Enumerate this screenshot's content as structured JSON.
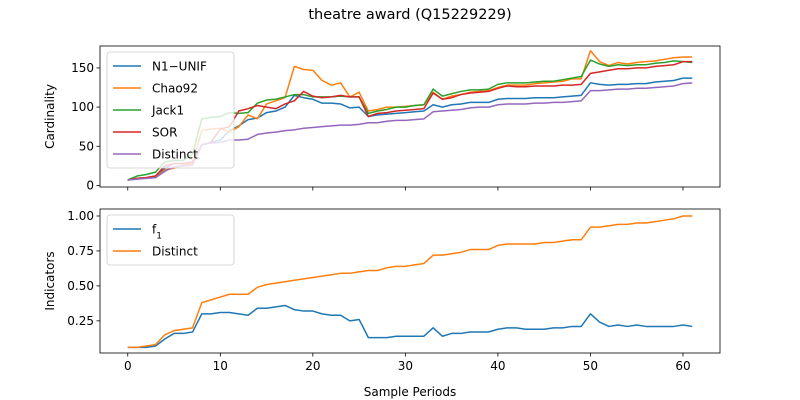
{
  "chart_data": {
    "title": "theatre award (Q15229229)",
    "colors": {
      "blue": "#1f77b4",
      "orange": "#ff7f0e",
      "green": "#2ca02c",
      "red": "#d62728",
      "purple": "#9467bd"
    },
    "x_label": "Sample Periods",
    "x_ticks": [
      "0",
      "10",
      "20",
      "30",
      "40",
      "50",
      "60"
    ],
    "x_range": [
      -3,
      64
    ],
    "panels": [
      {
        "type": "line",
        "ylabel": "Cardinality",
        "ylim": [
          -2,
          178
        ],
        "y_ticks": [
          "0",
          "50",
          "100",
          "150"
        ],
        "legend_loc": "upper-left",
        "series": [
          {
            "name": "N1−UNIF",
            "color_key": "blue",
            "values": [
              7,
              9,
              10,
              12,
              22,
              28,
              28,
              30,
              52,
              55,
              58,
              70,
              76,
              84,
              86,
              93,
              95,
              100,
              115,
              112,
              110,
              105,
              105,
              104,
              99,
              100,
              88,
              90,
              91,
              92,
              93,
              94,
              95,
              103,
              100,
              103,
              104,
              106,
              106,
              106,
              110,
              111,
              111,
              111,
              112,
              112,
              112,
              113,
              114,
              115,
              131,
              129,
              128,
              129,
              129,
              130,
              130,
              132,
              133,
              134,
              137,
              137
            ]
          },
          {
            "name": "Chao92",
            "color_key": "orange",
            "values": [
              7,
              9,
              10,
              10,
              20,
              22,
              26,
              28,
              70,
              72,
              73,
              68,
              75,
              90,
              85,
              104,
              108,
              112,
              152,
              148,
              147,
              134,
              128,
              131,
              113,
              119,
              95,
              97,
              100,
              100,
              101,
              102,
              103,
              119,
              110,
              114,
              116,
              119,
              120,
              121,
              125,
              128,
              128,
              128,
              130,
              131,
              132,
              133,
              136,
              136,
              172,
              158,
              153,
              157,
              155,
              157,
              158,
              159,
              161,
              163,
              164,
              164
            ]
          },
          {
            "name": "Jack1",
            "color_key": "green",
            "values": [
              7,
              12,
              14,
              17,
              30,
              32,
              32,
              40,
              85,
              87,
              88,
              93,
              92,
              93,
              105,
              109,
              110,
              113,
              116,
              116,
              113,
              113,
              113,
              114,
              113,
              113,
              92,
              95,
              97,
              100,
              100,
              102,
              103,
              123,
              114,
              117,
              120,
              122,
              122,
              123,
              129,
              131,
              131,
              131,
              132,
              133,
              133,
              135,
              137,
              139,
              160,
              155,
              152,
              154,
              153,
              154,
              154,
              156,
              157,
              159,
              158,
              157
            ]
          },
          {
            "name": "SOR",
            "color_key": "red",
            "values": [
              7,
              9,
              10,
              12,
              25,
              28,
              28,
              30,
              52,
              55,
              72,
              75,
              95,
              98,
              102,
              100,
              98,
              104,
              108,
              120,
              114,
              112,
              113,
              115,
              113,
              113,
              88,
              92,
              93,
              95,
              96,
              97,
              98,
              118,
              110,
              112,
              116,
              118,
              119,
              120,
              124,
              127,
              126,
              126,
              127,
              127,
              127,
              128,
              128,
              129,
              143,
              145,
              147,
              149,
              149,
              150,
              150,
              152,
              153,
              154,
              158,
              158
            ]
          },
          {
            "name": "Distinct",
            "color_key": "purple",
            "values": [
              7,
              8,
              9,
              10,
              18,
              24,
              25,
              26,
              52,
              54,
              55,
              58,
              58,
              59,
              65,
              67,
              68,
              70,
              71,
              73,
              74,
              75,
              76,
              77,
              77,
              78,
              80,
              80,
              82,
              83,
              83,
              84,
              85,
              94,
              95,
              96,
              97,
              99,
              100,
              100,
              103,
              104,
              104,
              104,
              105,
              105,
              106,
              106,
              107,
              108,
              121,
              121,
              122,
              123,
              123,
              124,
              124,
              125,
              126,
              127,
              130,
              131
            ]
          }
        ]
      },
      {
        "type": "line",
        "ylabel": "Indicators",
        "ylim": [
          0.02,
          1.05
        ],
        "y_ticks": [
          "0.25",
          "0.50",
          "0.75",
          "1.00"
        ],
        "legend_loc": "upper-left",
        "series": [
          {
            "name": "f",
            "name_sub": "1",
            "color_key": "blue",
            "values": [
              0.06,
              0.06,
              0.06,
              0.07,
              0.12,
              0.16,
              0.16,
              0.17,
              0.3,
              0.3,
              0.31,
              0.31,
              0.3,
              0.29,
              0.34,
              0.34,
              0.35,
              0.36,
              0.33,
              0.32,
              0.32,
              0.3,
              0.29,
              0.29,
              0.25,
              0.26,
              0.13,
              0.13,
              0.13,
              0.14,
              0.14,
              0.14,
              0.14,
              0.2,
              0.14,
              0.16,
              0.16,
              0.17,
              0.17,
              0.17,
              0.19,
              0.2,
              0.2,
              0.19,
              0.19,
              0.19,
              0.2,
              0.2,
              0.21,
              0.21,
              0.3,
              0.24,
              0.21,
              0.22,
              0.21,
              0.22,
              0.21,
              0.21,
              0.21,
              0.21,
              0.22,
              0.21
            ]
          },
          {
            "name": "Distinct",
            "color_key": "orange",
            "values": [
              0.06,
              0.06,
              0.07,
              0.08,
              0.15,
              0.18,
              0.19,
              0.2,
              0.38,
              0.4,
              0.42,
              0.44,
              0.44,
              0.44,
              0.49,
              0.51,
              0.52,
              0.53,
              0.54,
              0.55,
              0.56,
              0.57,
              0.58,
              0.59,
              0.59,
              0.6,
              0.61,
              0.61,
              0.63,
              0.64,
              0.64,
              0.65,
              0.66,
              0.72,
              0.72,
              0.73,
              0.74,
              0.76,
              0.76,
              0.76,
              0.79,
              0.8,
              0.8,
              0.8,
              0.8,
              0.81,
              0.81,
              0.82,
              0.83,
              0.83,
              0.92,
              0.92,
              0.93,
              0.94,
              0.94,
              0.95,
              0.95,
              0.96,
              0.97,
              0.98,
              1.0,
              1.0
            ]
          }
        ]
      }
    ]
  }
}
